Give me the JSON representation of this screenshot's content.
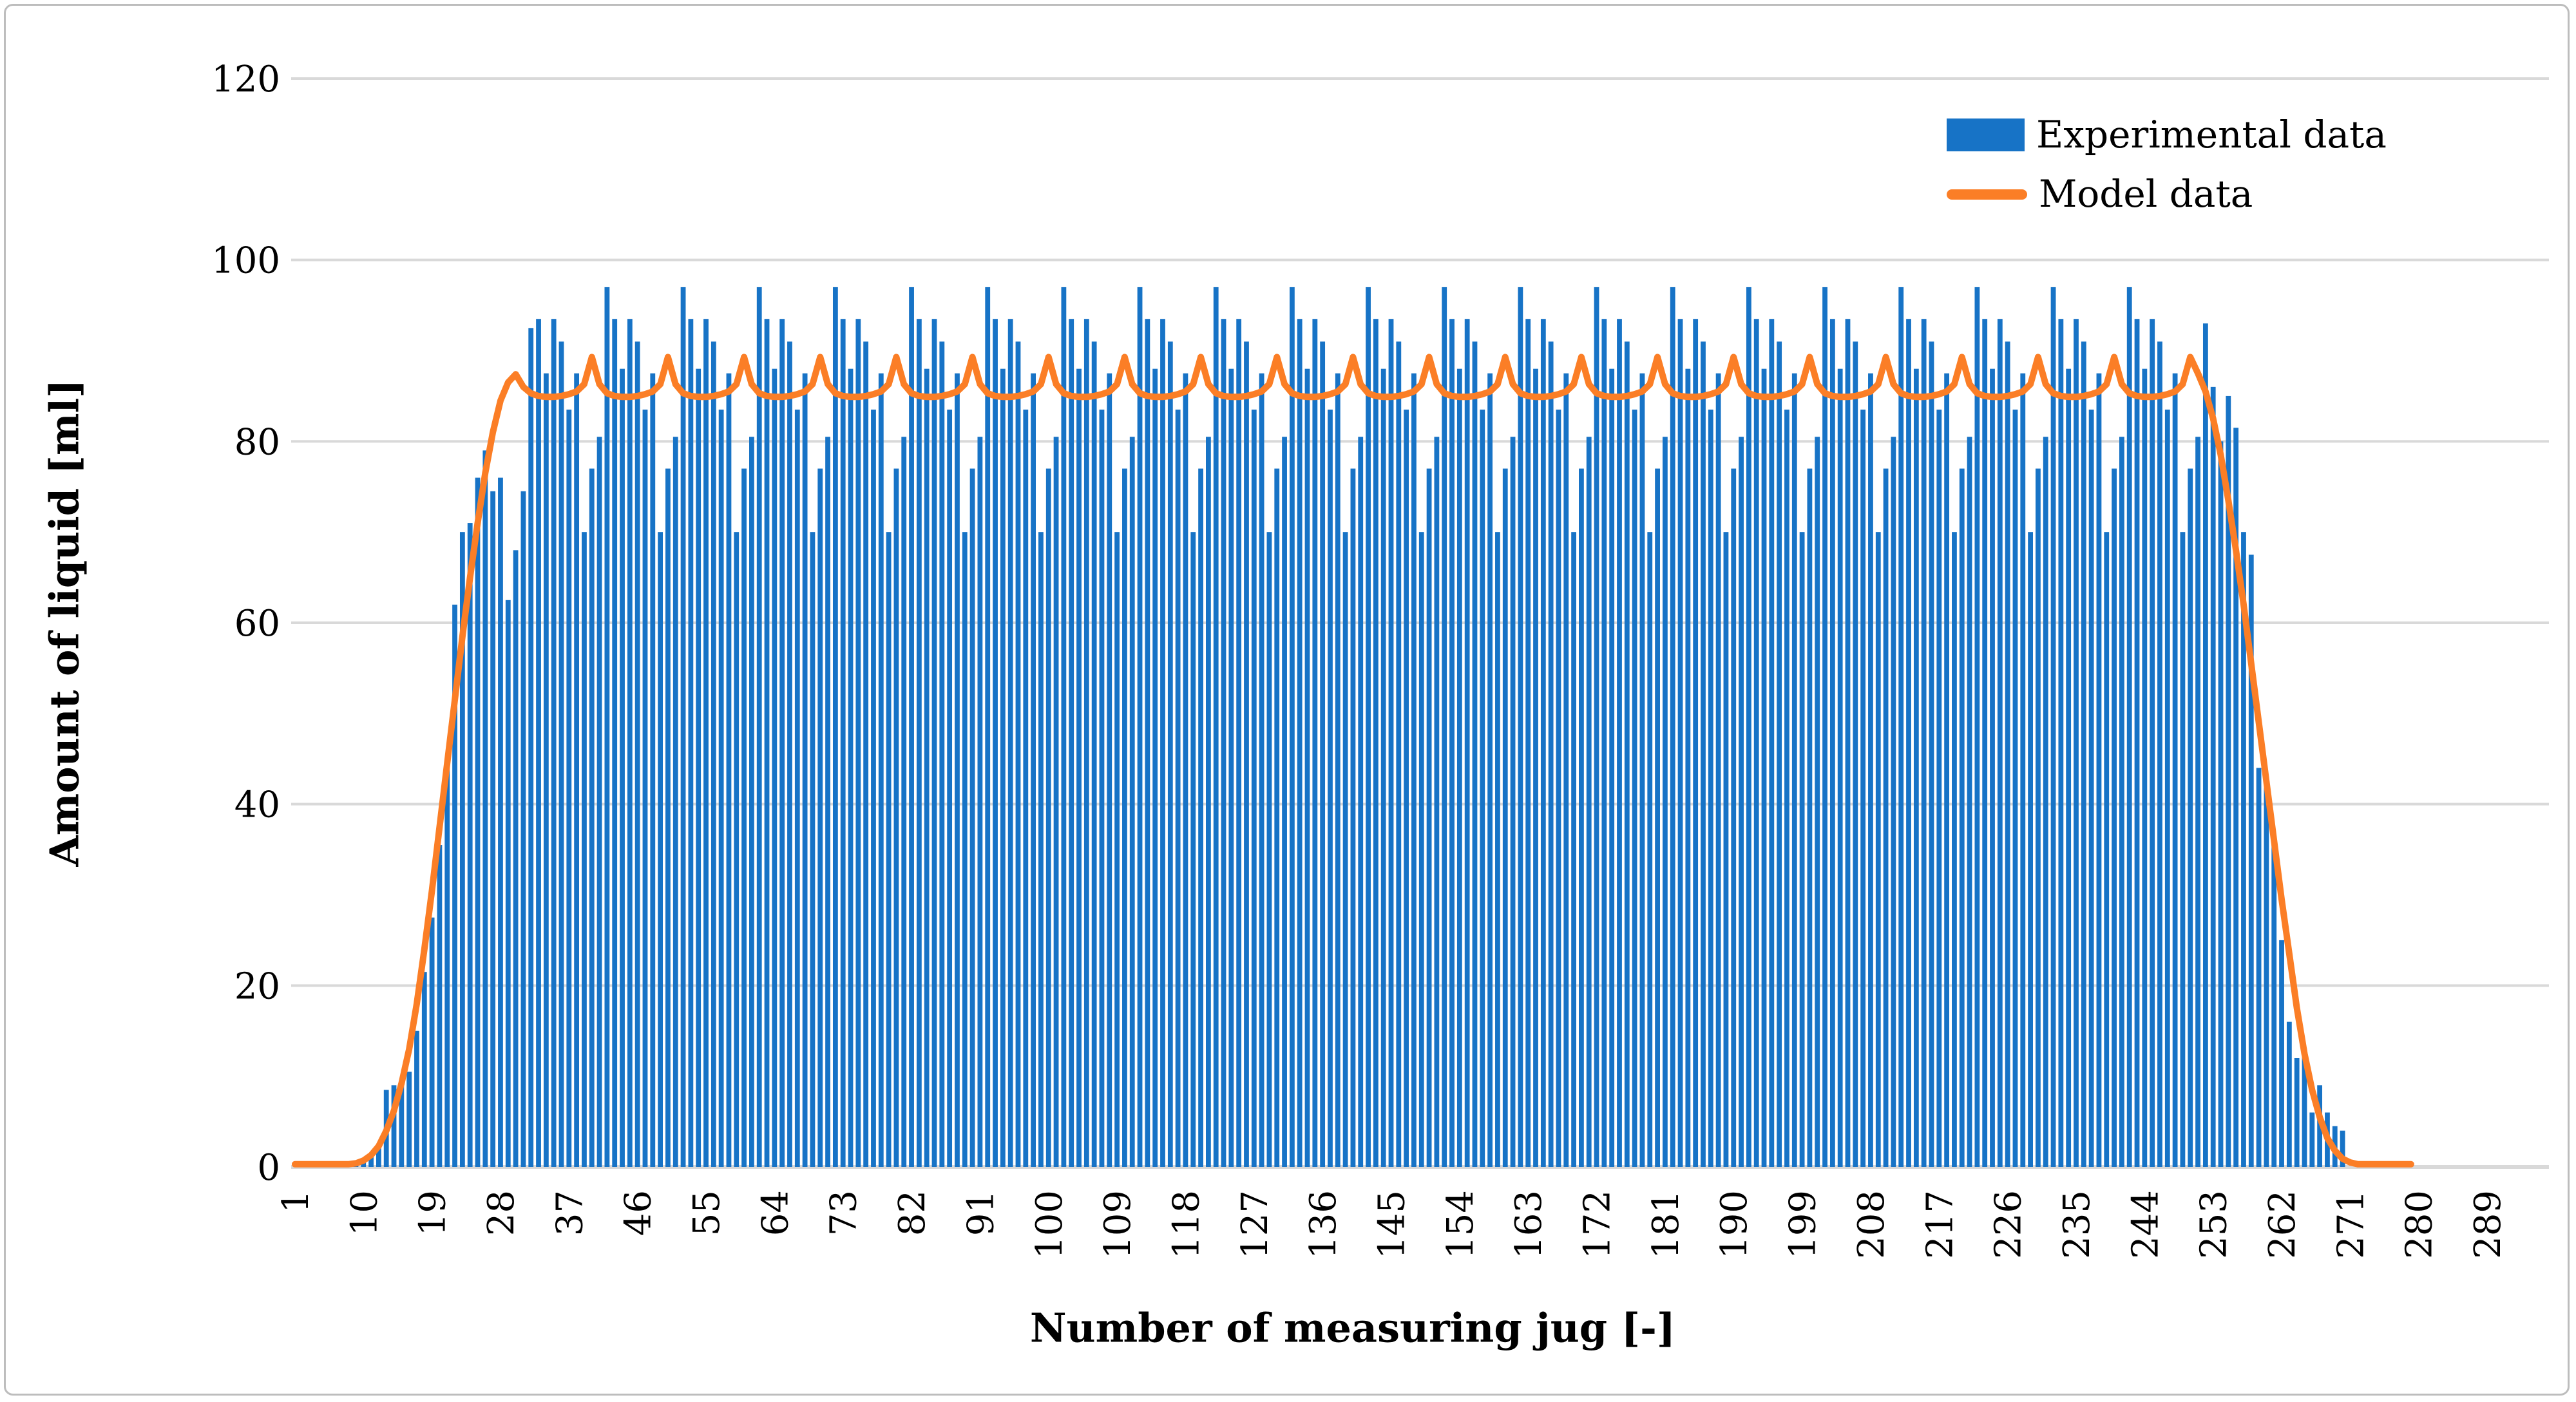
{
  "page": {
    "background": "#ffffff",
    "frame_border_color": "#bdbdbd"
  },
  "legend": {
    "items": [
      {
        "label": "Experimental data",
        "swatch": "bar-swatch",
        "color": "#1773c6"
      },
      {
        "label": "Model data",
        "swatch": "line-swatch",
        "color": "#fb7e26"
      }
    ],
    "position": "top-right-inside"
  },
  "chart_data": {
    "type": "bar",
    "combo": "bar + smooth line overlay",
    "title": "",
    "xlabel": "Number of measuring jug [-]",
    "ylabel": "Amount of liquid [ml]",
    "ylim": [
      0,
      120
    ],
    "y_ticks": [
      0,
      20,
      40,
      60,
      80,
      100,
      120
    ],
    "x_categories_count": 289,
    "x_tick_labels": [
      "1",
      "10",
      "19",
      "28",
      "37",
      "46",
      "55",
      "64",
      "73",
      "82",
      "91",
      "100",
      "109",
      "118",
      "127",
      "136",
      "145",
      "154",
      "163",
      "172",
      "181",
      "190",
      "199",
      "208",
      "217",
      "226",
      "235",
      "244",
      "253",
      "262",
      "271",
      "280",
      "289"
    ],
    "x_tick_interval": 9,
    "grid": "horizontal",
    "gridline_color": "#d9d9d9",
    "axisline_color": "#d9d9d9",
    "legend_position": "top-right inside plot",
    "series": [
      {
        "name": "Experimental data",
        "type": "bar",
        "color": "#1773c6",
        "values": [
          0,
          0,
          0,
          0,
          0,
          0,
          0,
          0,
          0.5,
          1,
          1.5,
          2.5,
          8.5,
          9,
          9.5,
          10.5,
          15,
          21.5,
          27.5,
          35.5,
          44,
          62,
          70,
          71,
          76,
          79,
          74.5,
          76,
          62.5,
          68,
          74.5,
          92.5,
          93.5,
          87.5,
          93.5,
          91,
          83.5,
          87.5,
          70,
          77,
          80.5,
          97,
          93.5,
          88,
          93.5,
          91,
          83.5,
          87.5,
          70,
          77,
          80.5,
          97,
          93.5,
          88,
          93.5,
          91,
          83.5,
          87.5,
          70,
          77,
          80.5,
          97,
          93.5,
          88,
          93.5,
          91,
          83.5,
          87.5,
          70,
          77,
          80.5,
          97,
          93.5,
          88,
          93.5,
          91,
          83.5,
          87.5,
          70,
          77,
          80.5,
          97,
          93.5,
          88,
          93.5,
          91,
          83.5,
          87.5,
          70,
          77,
          80.5,
          97,
          93.5,
          88,
          93.5,
          91,
          83.5,
          87.5,
          70,
          77,
          80.5,
          97,
          93.5,
          88,
          93.5,
          91,
          83.5,
          87.5,
          70,
          77,
          80.5,
          97,
          93.5,
          88,
          93.5,
          91,
          83.5,
          87.5,
          70,
          77,
          80.5,
          97,
          93.5,
          88,
          93.5,
          91,
          83.5,
          87.5,
          70,
          77,
          80.5,
          97,
          93.5,
          88,
          93.5,
          91,
          83.5,
          87.5,
          70,
          77,
          80.5,
          97,
          93.5,
          88,
          93.5,
          91,
          83.5,
          87.5,
          70,
          77,
          80.5,
          97,
          93.5,
          88,
          93.5,
          91,
          83.5,
          87.5,
          70,
          77,
          80.5,
          97,
          93.5,
          88,
          93.5,
          91,
          83.5,
          87.5,
          70,
          77,
          80.5,
          97,
          93.5,
          88,
          93.5,
          91,
          83.5,
          87.5,
          70,
          77,
          80.5,
          97,
          93.5,
          88,
          93.5,
          91,
          83.5,
          87.5,
          70,
          77,
          80.5,
          97,
          93.5,
          88,
          93.5,
          91,
          83.5,
          87.5,
          70,
          77,
          80.5,
          97,
          93.5,
          88,
          93.5,
          91,
          83.5,
          87.5,
          70,
          77,
          80.5,
          97,
          93.5,
          88,
          93.5,
          91,
          83.5,
          87.5,
          70,
          77,
          80.5,
          97,
          93.5,
          88,
          93.5,
          91,
          83.5,
          87.5,
          70,
          77,
          80.5,
          97,
          93.5,
          88,
          93.5,
          91,
          83.5,
          87.5,
          70,
          77,
          80.5,
          97,
          93.5,
          88,
          93.5,
          91,
          83.5,
          87.5,
          70,
          77,
          80.5,
          93,
          86,
          80,
          85,
          81.5,
          70,
          67.5,
          44,
          42.5,
          36,
          25,
          16,
          12,
          13,
          6,
          9,
          6,
          4.5,
          4,
          0,
          0,
          0,
          0,
          0,
          0,
          0,
          0,
          0
        ]
      },
      {
        "name": "Model data",
        "type": "line",
        "color": "#fb7e26",
        "stroke_width": 10,
        "values": [
          0.3,
          0.3,
          0.3,
          0.3,
          0.3,
          0.3,
          0.3,
          0.3,
          0.4,
          0.7,
          1.3,
          2.3,
          4,
          6.2,
          9.2,
          13,
          18,
          24,
          30.5,
          37.5,
          44.5,
          51.5,
          58.5,
          65,
          71,
          76.5,
          81,
          84.5,
          86.5,
          87.4,
          86,
          85.3,
          85,
          84.9,
          84.9,
          85,
          85.2,
          85.5,
          86.3,
          89.3,
          86.3,
          85.3,
          85,
          84.9,
          84.9,
          85,
          85.2,
          85.5,
          86.3,
          89.3,
          86.3,
          85.3,
          85,
          84.9,
          84.9,
          85,
          85.2,
          85.5,
          86.3,
          89.3,
          86.3,
          85.3,
          85,
          84.9,
          84.9,
          85,
          85.2,
          85.5,
          86.3,
          89.3,
          86.3,
          85.3,
          85,
          84.9,
          84.9,
          85,
          85.2,
          85.5,
          86.3,
          89.3,
          86.3,
          85.3,
          85,
          84.9,
          84.9,
          85,
          85.2,
          85.5,
          86.3,
          89.3,
          86.3,
          85.3,
          85,
          84.9,
          84.9,
          85,
          85.2,
          85.5,
          86.3,
          89.3,
          86.3,
          85.3,
          85,
          84.9,
          84.9,
          85,
          85.2,
          85.5,
          86.3,
          89.3,
          86.3,
          85.3,
          85,
          84.9,
          84.9,
          85,
          85.2,
          85.5,
          86.3,
          89.3,
          86.3,
          85.3,
          85,
          84.9,
          84.9,
          85,
          85.2,
          85.5,
          86.3,
          89.3,
          86.3,
          85.3,
          85,
          84.9,
          84.9,
          85,
          85.2,
          85.5,
          86.3,
          89.3,
          86.3,
          85.3,
          85,
          84.9,
          84.9,
          85,
          85.2,
          85.5,
          86.3,
          89.3,
          86.3,
          85.3,
          85,
          84.9,
          84.9,
          85,
          85.2,
          85.5,
          86.3,
          89.3,
          86.3,
          85.3,
          85,
          84.9,
          84.9,
          85,
          85.2,
          85.5,
          86.3,
          89.3,
          86.3,
          85.3,
          85,
          84.9,
          84.9,
          85,
          85.2,
          85.5,
          86.3,
          89.3,
          86.3,
          85.3,
          85,
          84.9,
          84.9,
          85,
          85.2,
          85.5,
          86.3,
          89.3,
          86.3,
          85.3,
          85,
          84.9,
          84.9,
          85,
          85.2,
          85.5,
          86.3,
          89.3,
          86.3,
          85.3,
          85,
          84.9,
          84.9,
          85,
          85.2,
          85.5,
          86.3,
          89.3,
          86.3,
          85.3,
          85,
          84.9,
          84.9,
          85,
          85.2,
          85.5,
          86.3,
          89.3,
          86.3,
          85.3,
          85,
          84.9,
          84.9,
          85,
          85.2,
          85.5,
          86.3,
          89.3,
          86.3,
          85.3,
          85,
          84.9,
          84.9,
          85,
          85.2,
          85.5,
          86.3,
          89.3,
          86.3,
          85.3,
          85,
          84.9,
          84.9,
          85,
          85.2,
          85.5,
          86.3,
          89.3,
          87.5,
          85.5,
          82.5,
          78.5,
          73.5,
          68,
          62,
          55.5,
          49,
          42.5,
          36,
          29.5,
          23.5,
          17.5,
          12.5,
          8.5,
          5.5,
          3.2,
          1.8,
          0.9,
          0.5,
          0.3,
          0.3,
          0.3,
          0.3,
          0.3,
          0.3,
          0.3,
          0.3
        ]
      }
    ],
    "layout": {
      "plot_left": 452,
      "plot_right": 3957,
      "plot_top": 122,
      "plot_bottom": 1812,
      "category_span_right": 3867,
      "bar_width": 7.8,
      "gridline_width": 4,
      "baseline_width": 6
    }
  }
}
